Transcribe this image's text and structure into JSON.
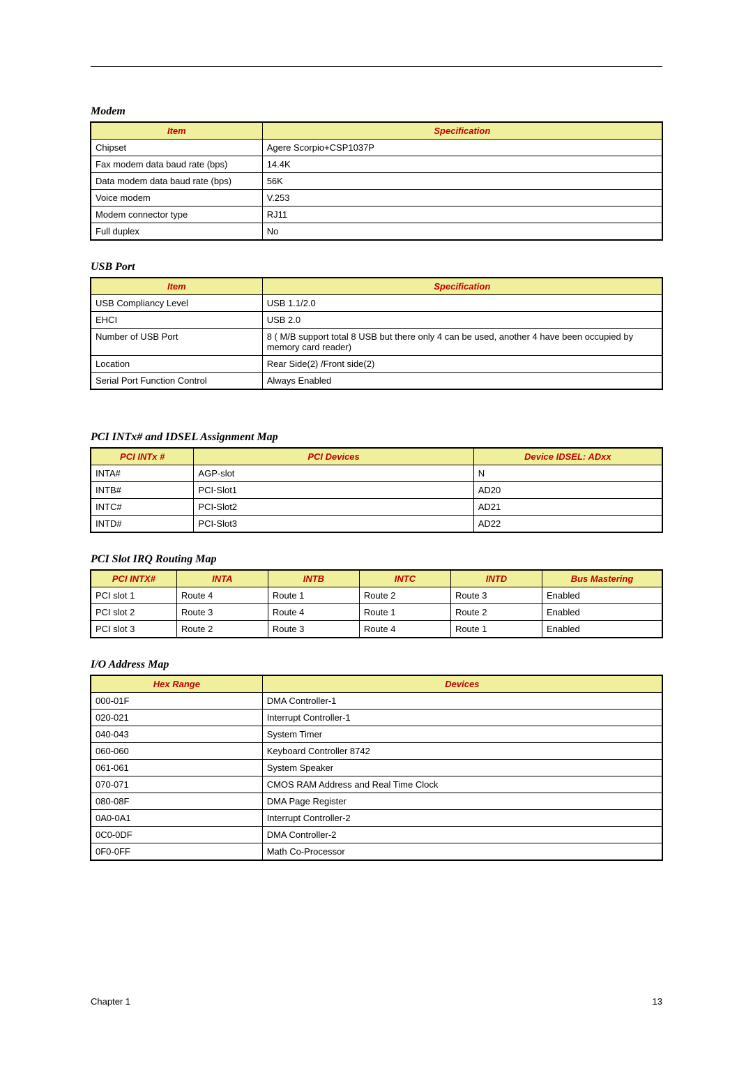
{
  "page": {
    "chapter": "Chapter 1",
    "number": "13"
  },
  "modem": {
    "title": "Modem",
    "headers": [
      "Item",
      "Specification"
    ],
    "col_widths": [
      "30%",
      "70%"
    ],
    "rows": [
      [
        "Chipset",
        "Agere Scorpio+CSP1037P"
      ],
      [
        "Fax modem data baud rate (bps)",
        "14.4K"
      ],
      [
        "Data modem data baud rate (bps)",
        "56K"
      ],
      [
        "Voice modem",
        "V.253"
      ],
      [
        "Modem connector type",
        "RJ11"
      ],
      [
        "Full duplex",
        "No"
      ]
    ]
  },
  "usb": {
    "title": "USB Port",
    "headers": [
      "Item",
      "Specification"
    ],
    "col_widths": [
      "30%",
      "70%"
    ],
    "rows": [
      [
        "USB Compliancy Level",
        "USB 1.1/2.0"
      ],
      [
        "EHCI",
        "USB 2.0"
      ],
      [
        "Number of USB Port",
        "8 ( M/B support total 8 USB but there only 4 can be used, another 4 have been occupied by memory card reader)"
      ],
      [
        "Location",
        "Rear Side(2) /Front side(2)"
      ],
      [
        "Serial Port Function Control",
        "Always Enabled"
      ]
    ]
  },
  "pci_intx": {
    "title": "PCI INTx# and IDSEL Assignment Map",
    "headers": [
      "PCI INTx #",
      "PCI Devices",
      "Device IDSEL: ADxx"
    ],
    "col_widths": [
      "18%",
      "49%",
      "33%"
    ],
    "rows": [
      [
        "INTA#",
        "AGP-slot",
        "N"
      ],
      [
        "INTB#",
        "PCI-Slot1",
        "AD20"
      ],
      [
        "INTC#",
        "PCI-Slot2",
        "AD21"
      ],
      [
        "INTD#",
        "PCI-Slot3",
        "AD22"
      ]
    ]
  },
  "pci_irq": {
    "title": "PCI Slot IRQ Routing Map",
    "headers": [
      "PCI INTX#",
      "INTA",
      "INTB",
      "INTC",
      "INTD",
      "Bus Mastering"
    ],
    "col_widths": [
      "15%",
      "16%",
      "16%",
      "16%",
      "16%",
      "21%"
    ],
    "rows": [
      [
        "PCI slot 1",
        "Route 4",
        "Route 1",
        "Route 2",
        "Route 3",
        "Enabled"
      ],
      [
        "PCI slot 2",
        "Route 3",
        "Route 4",
        "Route 1",
        "Route 2",
        "Enabled"
      ],
      [
        "PCI slot 3",
        "Route 2",
        "Route 3",
        "Route 4",
        "Route 1",
        "Enabled"
      ]
    ]
  },
  "io_map": {
    "title": "I/O Address Map",
    "headers": [
      "Hex Range",
      "Devices"
    ],
    "col_widths": [
      "30%",
      "70%"
    ],
    "rows": [
      [
        "000-01F",
        "DMA Controller-1"
      ],
      [
        "020-021",
        "Interrupt Controller-1"
      ],
      [
        "040-043",
        "System Timer"
      ],
      [
        "060-060",
        "Keyboard Controller 8742"
      ],
      [
        "061-061",
        "System Speaker"
      ],
      [
        "070-071",
        "CMOS RAM Address and Real Time Clock"
      ],
      [
        "080-08F",
        "DMA Page Register"
      ],
      [
        "0A0-0A1",
        "Interrupt Controller-2"
      ],
      [
        "0C0-0DF",
        "DMA Controller-2"
      ],
      [
        "0F0-0FF",
        "Math Co-Processor"
      ]
    ]
  },
  "style": {
    "header_bg": "#efef9c",
    "header_fg": "#c00000",
    "border_color": "#000000",
    "body_font": "Arial",
    "title_font": "Georgia",
    "font_size_body": 13,
    "font_size_title": 16
  }
}
